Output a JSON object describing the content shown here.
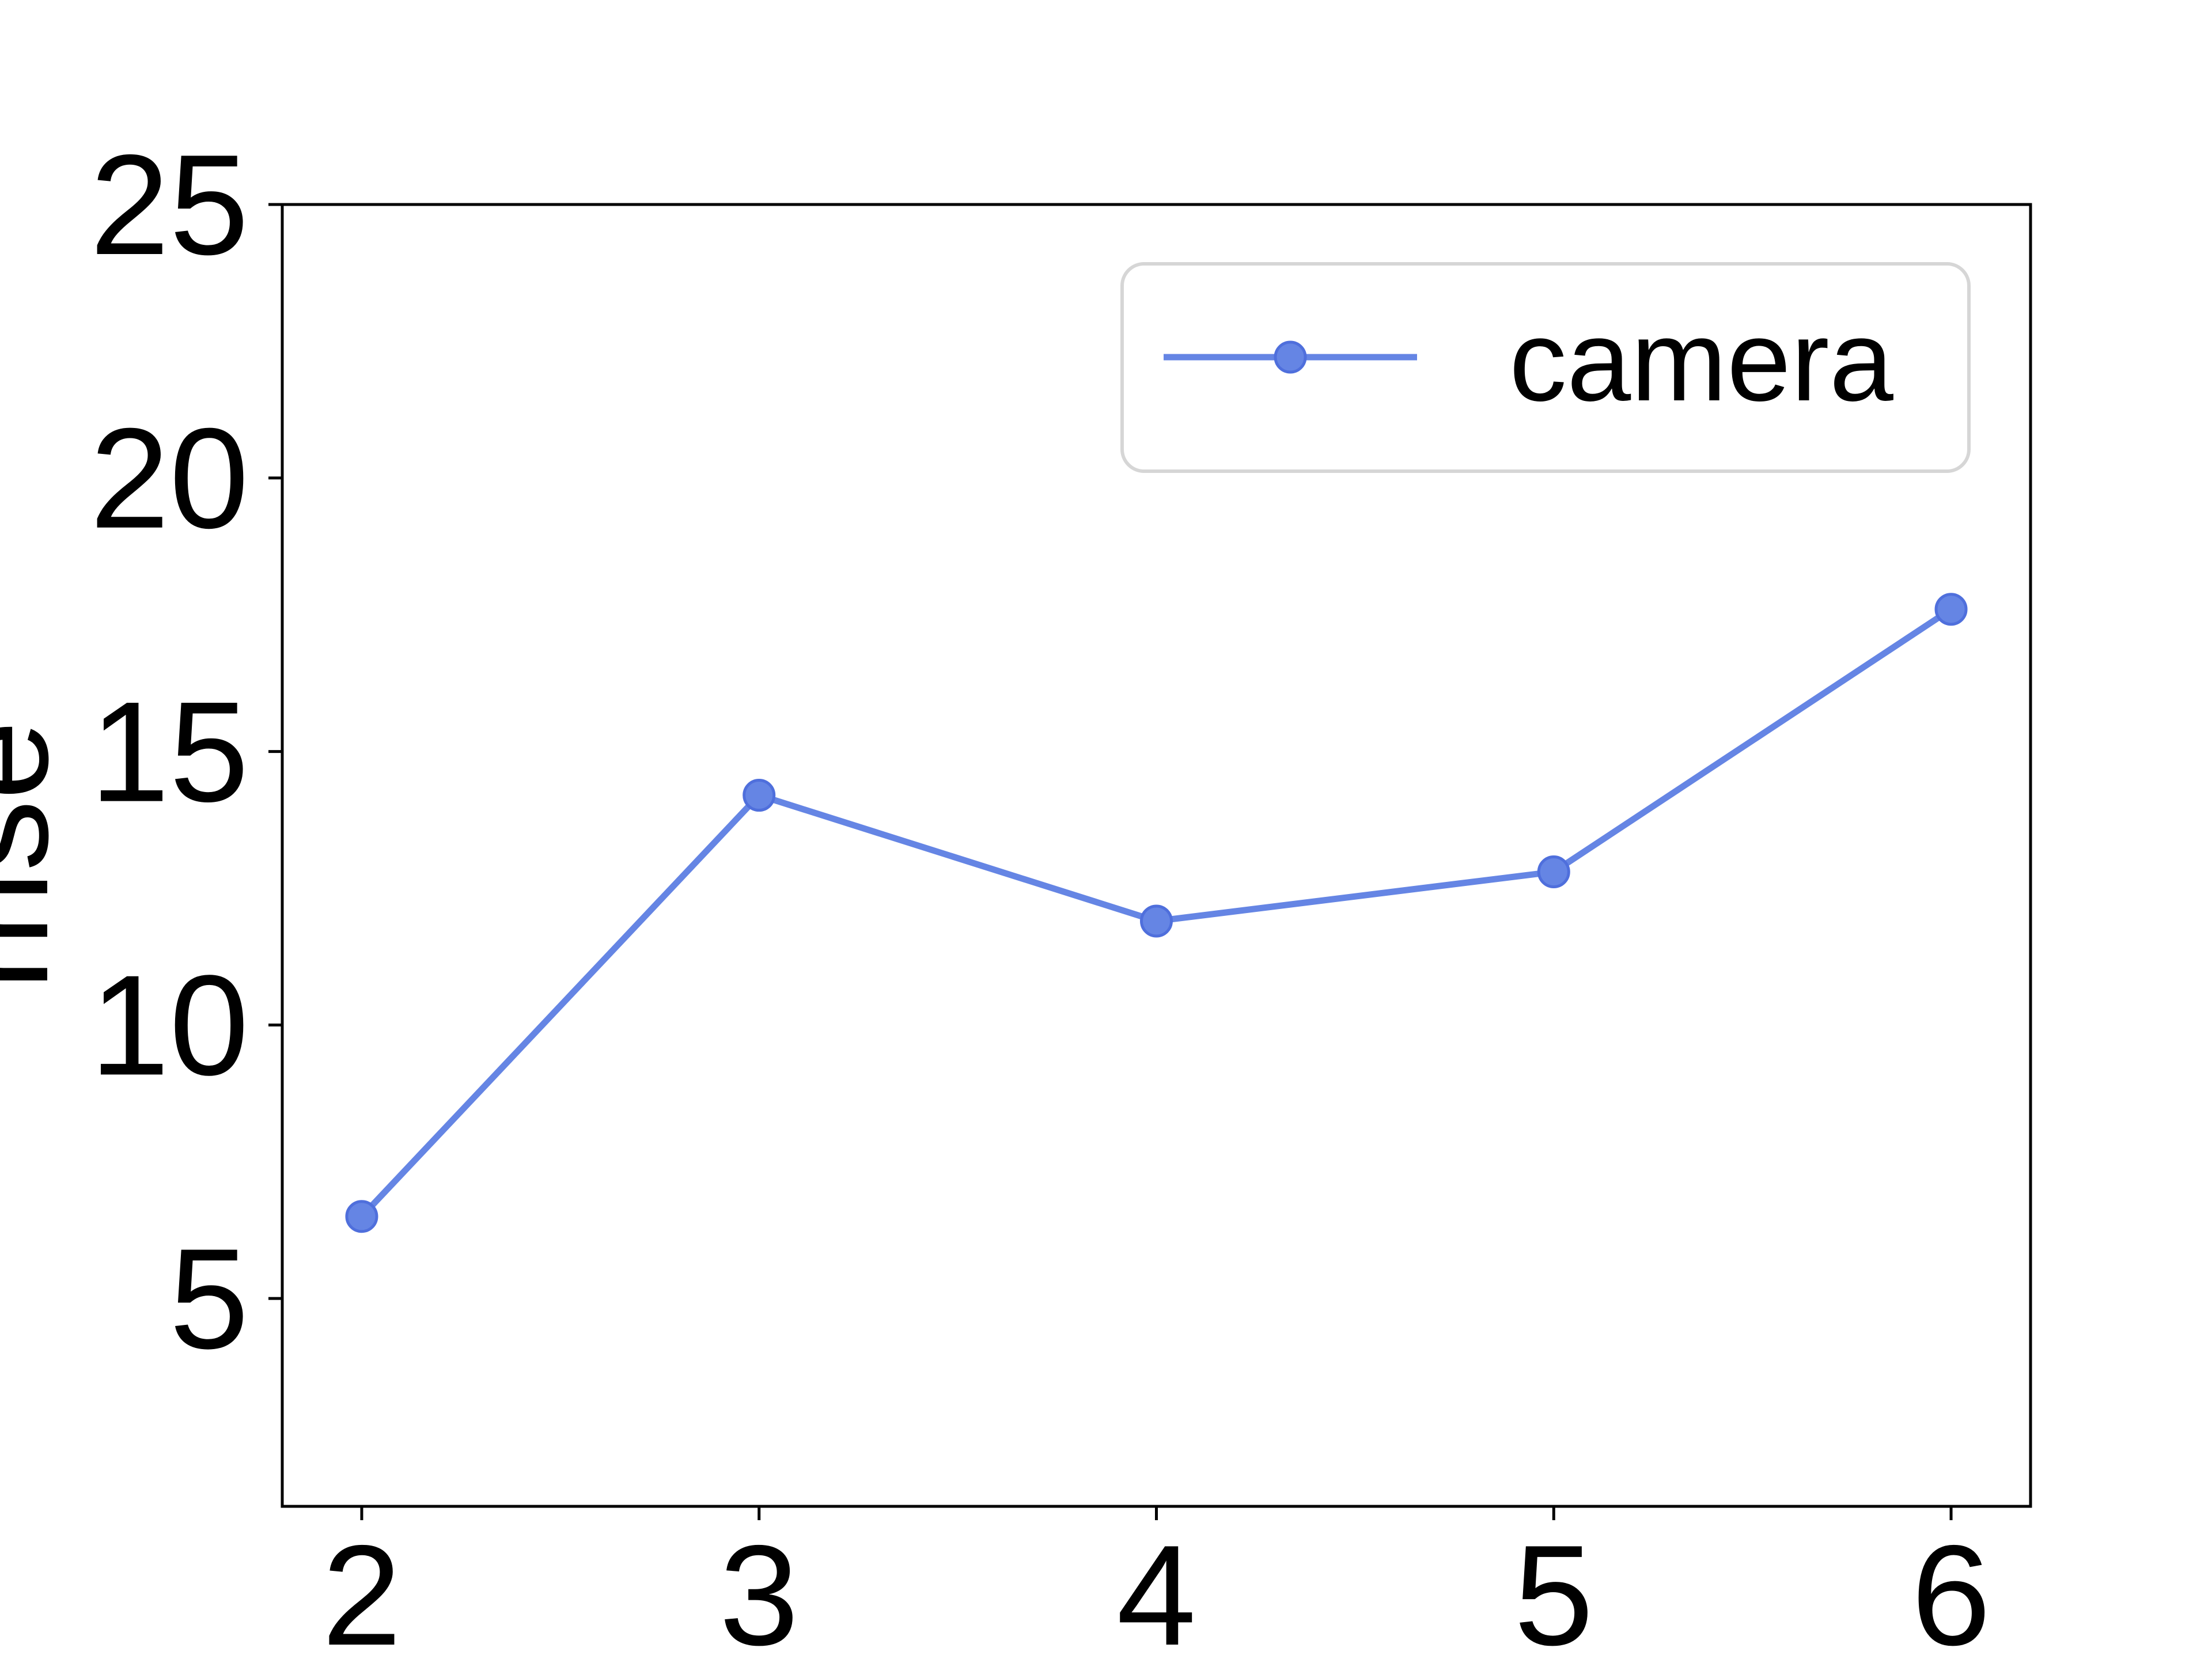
{
  "chart_data": {
    "type": "line",
    "title": "",
    "xlabel": "",
    "ylabel": "mse",
    "x": [
      2,
      3,
      4,
      5,
      6
    ],
    "x_ticks": [
      "2",
      "3",
      "4",
      "5",
      "6"
    ],
    "y_ticks": [
      "5",
      "10",
      "15",
      "20",
      "25"
    ],
    "ylim": [
      1.2,
      25
    ],
    "grid": false,
    "legend_position": "top-right",
    "series": [
      {
        "name": "camera",
        "color": "#6585e4",
        "marker": "circle",
        "values": [
          6.5,
          14.2,
          11.9,
          12.8,
          17.6
        ]
      }
    ]
  }
}
